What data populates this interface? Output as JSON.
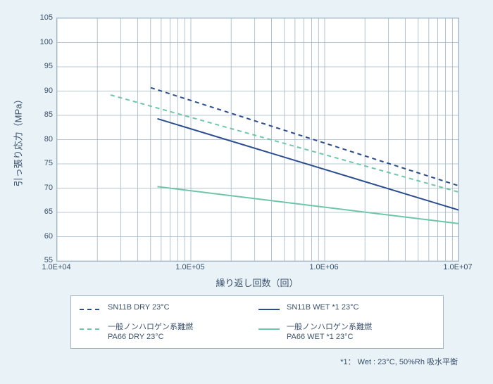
{
  "chart": {
    "type": "line-log-x",
    "background_color": "#ffffff",
    "page_background": "#e8f2f7",
    "border_color": "#a0b5c5",
    "grid_color": "#a0b5c5",
    "grid_stroke_width": 0.8,
    "y_label": "引っ張り応力（MPa）",
    "x_label": "繰り返し回数（回）",
    "label_fontsize": 13,
    "tick_fontsize": 11,
    "label_color": "#3a506b",
    "x_min_exp": 4,
    "x_max_exp": 7,
    "x_tick_labels": [
      "1.0E+04",
      "1.0E+05",
      "1.0E+06",
      "1.0E+07"
    ],
    "y_min": 55,
    "y_max": 105,
    "y_tick_step": 5,
    "y_ticks": [
      55,
      60,
      65,
      70,
      75,
      80,
      85,
      90,
      95,
      100,
      105
    ],
    "series": [
      {
        "id": "sn11b-dry",
        "label": "SN11B DRY 23°C",
        "color": "#2a4d8f",
        "line_width": 2,
        "dash": "6,5",
        "points": [
          {
            "x_exp": 4.7,
            "y": 90.7
          },
          {
            "x_exp": 7.0,
            "y": 70.5
          }
        ]
      },
      {
        "id": "sn11b-wet",
        "label": "SN11B WET *1 23°C",
        "color": "#2a4d8f",
        "line_width": 2,
        "dash": "",
        "points": [
          {
            "x_exp": 4.75,
            "y": 84.3
          },
          {
            "x_exp": 7.0,
            "y": 65.5
          }
        ]
      },
      {
        "id": "pa66-dry",
        "label": "一般ノンハロゲン系難燃\nPA66 DRY 23°C",
        "color": "#6ec6a9",
        "line_width": 2,
        "dash": "6,5",
        "points": [
          {
            "x_exp": 4.4,
            "y": 89.2
          },
          {
            "x_exp": 7.0,
            "y": 69.2
          }
        ]
      },
      {
        "id": "pa66-wet",
        "label": "一般ノンハロゲン系難燃\nPA66 WET *1 23°C",
        "color": "#6ec6a9",
        "line_width": 2,
        "dash": "",
        "points": [
          {
            "x_exp": 4.75,
            "y": 70.3
          },
          {
            "x_exp": 7.0,
            "y": 62.7
          }
        ]
      }
    ],
    "legend": {
      "border_color": "#a0b5c5",
      "background": "#ffffff",
      "fontsize": 11,
      "text_color": "#3a506b",
      "swatch_length": 30
    },
    "footnote": "*1： Wet : 23°C, 50%Rh 吸水平衡"
  }
}
